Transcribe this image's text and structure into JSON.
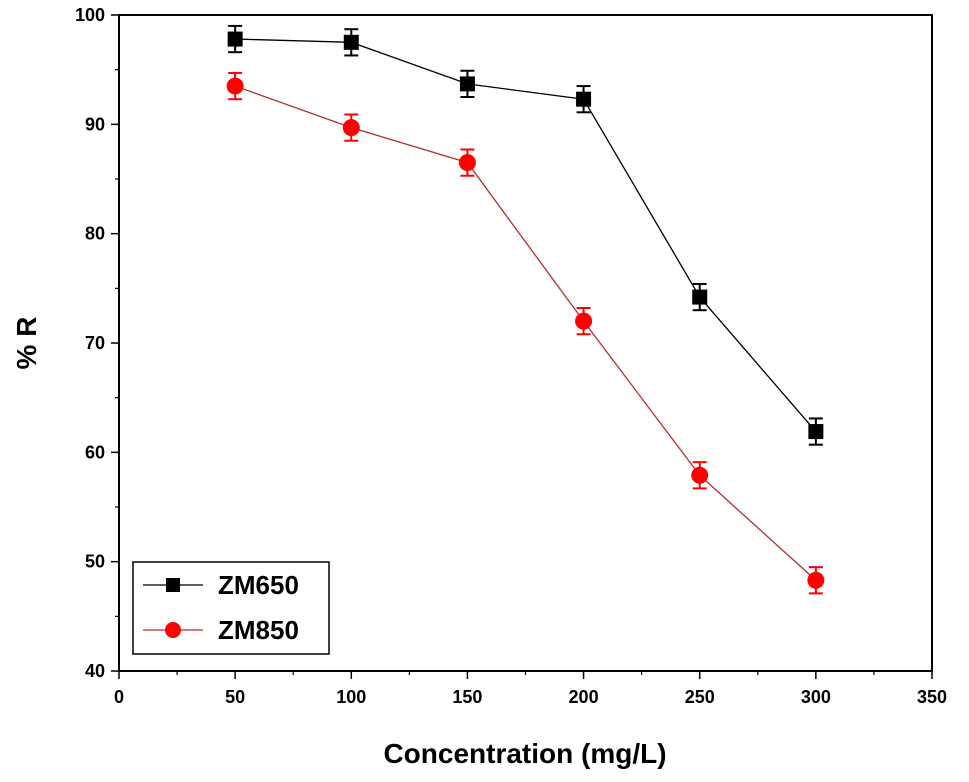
{
  "chart_data": {
    "type": "line",
    "title": "",
    "xlabel": "Concentration (mg/L)",
    "ylabel": "% R",
    "xlim": [
      0,
      350
    ],
    "ylim": [
      40,
      100
    ],
    "xticks": [
      0,
      50,
      100,
      150,
      200,
      250,
      300,
      350
    ],
    "yticks": [
      40,
      50,
      60,
      70,
      80,
      90,
      100
    ],
    "grid": false,
    "legend_position": "bottom-left",
    "x": [
      50,
      100,
      150,
      200,
      250,
      300
    ],
    "series": [
      {
        "name": "ZM650",
        "color": "#000000",
        "marker": "square",
        "values": [
          97.8,
          97.5,
          93.7,
          92.3,
          74.2,
          61.9
        ],
        "errors": [
          1.2,
          1.2,
          1.2,
          1.2,
          1.2,
          1.2
        ]
      },
      {
        "name": "ZM850",
        "color": "#ff0000",
        "line_color": "#b03030",
        "marker": "circle",
        "values": [
          93.5,
          89.7,
          86.5,
          72.0,
          57.9,
          48.3
        ],
        "errors": [
          1.2,
          1.2,
          1.2,
          1.2,
          1.2,
          1.2
        ]
      }
    ]
  }
}
